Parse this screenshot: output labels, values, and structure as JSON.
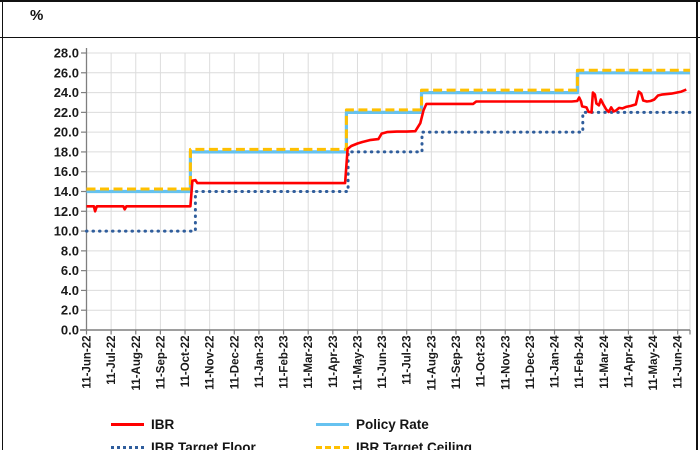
{
  "header": {
    "unit_label": "%"
  },
  "chart_data": {
    "type": "line",
    "title": "",
    "ylabel": "%",
    "xlabel": "",
    "ylim": [
      0,
      28
    ],
    "y_tick_labels": [
      "0.0",
      "2.0",
      "4.0",
      "6.0",
      "8.0",
      "10.0",
      "12.0",
      "14.0",
      "16.0",
      "18.0",
      "20.0",
      "22.0",
      "24.0",
      "26.0",
      "28.0"
    ],
    "x_tick_labels": [
      "11-Jun-22",
      "11-Jul-22",
      "11-Aug-22",
      "11-Sep-22",
      "11-Oct-22",
      "11-Nov-22",
      "11-Dec-22",
      "11-Jan-23",
      "11-Feb-23",
      "11-Mar-23",
      "11-Apr-23",
      "11-May-23",
      "11-Jun-23",
      "11-Jul-23",
      "11-Aug-23",
      "11-Sep-23",
      "11-Oct-23",
      "11-Nov-23",
      "11-Dec-23",
      "11-Jan-24",
      "11-Feb-24",
      "11-Mar-24",
      "11-Apr-24",
      "11-May-24",
      "11-Jun-24"
    ],
    "x_axis_span_categories": 24.5,
    "grid": true,
    "legend_position": "bottom",
    "series": [
      {
        "name": "IBR",
        "style": "solid",
        "color": "#FF0000",
        "width": 2.6,
        "points": [
          [
            0,
            12.5
          ],
          [
            0.3,
            12.5
          ],
          [
            0.35,
            12.0
          ],
          [
            0.42,
            12.5
          ],
          [
            1.5,
            12.5
          ],
          [
            1.55,
            12.2
          ],
          [
            1.62,
            12.5
          ],
          [
            4.22,
            12.5
          ],
          [
            4.3,
            15.1
          ],
          [
            4.42,
            15.15
          ],
          [
            4.5,
            14.85
          ],
          [
            10.5,
            14.85
          ],
          [
            10.6,
            18.3
          ],
          [
            10.75,
            18.6
          ],
          [
            11.0,
            18.85
          ],
          [
            11.2,
            19.0
          ],
          [
            11.5,
            19.2
          ],
          [
            11.85,
            19.3
          ],
          [
            11.98,
            19.85
          ],
          [
            12.2,
            20.0
          ],
          [
            12.6,
            20.05
          ],
          [
            13.0,
            20.05
          ],
          [
            13.35,
            20.1
          ],
          [
            13.55,
            20.9
          ],
          [
            13.68,
            22.2
          ],
          [
            13.8,
            22.85
          ],
          [
            15.7,
            22.85
          ],
          [
            15.82,
            23.1
          ],
          [
            19.7,
            23.1
          ],
          [
            19.92,
            23.15
          ],
          [
            20.0,
            23.5
          ],
          [
            20.08,
            23.1
          ],
          [
            20.12,
            22.6
          ],
          [
            20.3,
            22.5
          ],
          [
            20.38,
            22.05
          ],
          [
            20.5,
            22.0
          ],
          [
            20.56,
            24.0
          ],
          [
            20.64,
            23.8
          ],
          [
            20.7,
            22.9
          ],
          [
            20.8,
            22.7
          ],
          [
            20.88,
            23.3
          ],
          [
            20.98,
            22.8
          ],
          [
            21.1,
            22.3
          ],
          [
            21.2,
            22.05
          ],
          [
            21.3,
            22.5
          ],
          [
            21.4,
            22.1
          ],
          [
            21.5,
            22.2
          ],
          [
            21.62,
            22.45
          ],
          [
            21.75,
            22.4
          ],
          [
            21.9,
            22.55
          ],
          [
            22.1,
            22.65
          ],
          [
            22.3,
            22.8
          ],
          [
            22.42,
            24.1
          ],
          [
            22.52,
            23.9
          ],
          [
            22.6,
            23.2
          ],
          [
            22.75,
            23.1
          ],
          [
            22.9,
            23.15
          ],
          [
            23.05,
            23.3
          ],
          [
            23.2,
            23.7
          ],
          [
            23.35,
            23.8
          ],
          [
            23.55,
            23.85
          ],
          [
            23.75,
            23.9
          ],
          [
            23.95,
            24.0
          ],
          [
            24.15,
            24.1
          ],
          [
            24.35,
            24.3
          ]
        ]
      },
      {
        "name": "Policy Rate",
        "style": "solid",
        "color": "#66C2F0",
        "width": 3.2,
        "steps": [
          [
            0,
            14.0
          ],
          [
            4.22,
            18.0
          ],
          [
            10.55,
            22.0
          ],
          [
            13.6,
            24.0
          ],
          [
            19.93,
            26.0
          ]
        ]
      },
      {
        "name": "IBR Target Floor",
        "style": "dotted",
        "color": "#2F5D9C",
        "width": 3.0,
        "steps": [
          [
            0,
            10.0
          ],
          [
            4.42,
            14.0
          ],
          [
            10.62,
            18.0
          ],
          [
            13.62,
            20.0
          ],
          [
            20.15,
            22.0
          ]
        ]
      },
      {
        "name": "IBR Target Ceiling",
        "style": "dashed",
        "color": "#FFC000",
        "width": 3.0,
        "overlay_offset": -2.5,
        "steps": [
          [
            0,
            14.0
          ],
          [
            4.22,
            18.0
          ],
          [
            10.55,
            22.0
          ],
          [
            13.6,
            24.0
          ],
          [
            19.93,
            26.0
          ]
        ]
      }
    ],
    "draw_order": [
      "Policy Rate",
      "IBR Target Ceiling",
      "IBR Target Floor",
      "IBR"
    ]
  },
  "legend": {
    "rows": [
      {
        "items": [
          {
            "label": "IBR",
            "style": "solid-red"
          },
          {
            "label": "Policy Rate",
            "style": "solid-skyblue"
          }
        ]
      },
      {
        "items": [
          {
            "label": "IBR Target Floor",
            "style": "dotted-blue"
          },
          {
            "label": "IBR Target Ceiling",
            "style": "dashed-gold"
          }
        ]
      }
    ]
  },
  "colors": {
    "grid": "#DCDCDC",
    "axis": "#7F7F7F",
    "tick_text": "#1A1A1A",
    "ibr": "#FF0000",
    "policy": "#66C2F0",
    "floor": "#2F5D9C",
    "ceiling": "#FFC000"
  }
}
